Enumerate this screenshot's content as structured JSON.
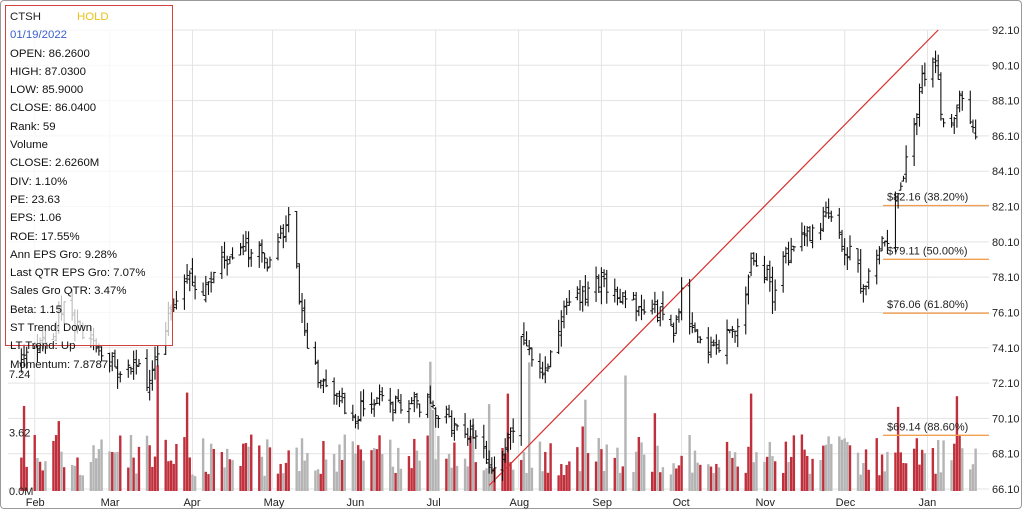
{
  "info": {
    "symbol": "CTSH",
    "rating": "HOLD",
    "date": "01/19/2022",
    "rows": [
      "OPEN: 86.2600",
      "HIGH: 87.0300",
      "LOW: 85.9000",
      "CLOSE: 86.0400",
      "Rank: 59",
      "Volume",
      "CLOSE: 2.6260M",
      "DIV: 1.10%",
      "PE: 23.63",
      "EPS: 1.06",
      "ROE: 17.55%",
      "Ann EPS Gro: 9.28%",
      "Last QTR EPS Gro: 7.07%",
      "Sales Gro QTR: 3.47%",
      "Beta: 1.15",
      "ST Trend: Down",
      "LT Trend: Up",
      "Momentum: 7.8787"
    ]
  },
  "colors": {
    "candle": "#111111",
    "volume_up": "#c0303c",
    "volume_down": "#b4b4b4",
    "trendline": "#d93030",
    "fib_line": "#f2a050",
    "grid": "#e3e3e3",
    "panel_border": "#d24040",
    "rating": "#e8c21a",
    "date": "#3a5fcc"
  },
  "chart_data": {
    "type": "candlestick",
    "price_axis": {
      "ticks": [
        "92.10",
        "90.10",
        "88.10",
        "86.10",
        "84.10",
        "82.10",
        "80.10",
        "78.10",
        "76.10",
        "74.10",
        "72.10",
        "70.10",
        "68.10",
        "66.10"
      ],
      "ylim": [
        66.1,
        92.1
      ],
      "side": "right"
    },
    "volume_axis": {
      "ticks": [
        "7.24",
        "3.62",
        "0.0M"
      ],
      "values": [
        7.24,
        3.62,
        0
      ],
      "side": "left"
    },
    "months": [
      "Feb",
      "Mar",
      "Apr",
      "May",
      "Jun",
      "Jul",
      "Aug",
      "Sep",
      "Oct",
      "Nov",
      "Dec",
      "Jan"
    ],
    "fibonacci": [
      {
        "label": "$82.16 (38.20%)",
        "value": 82.16
      },
      {
        "label": "$79.11 (50.00%)",
        "value": 79.11
      },
      {
        "label": "$76.06 (61.80%)",
        "value": 76.06
      },
      {
        "label": "$69.14 (88.60%)",
        "value": 69.14
      }
    ],
    "trendline": {
      "from_date": "2021-07-21",
      "from_price": 66.3,
      "to_date": "2022-01-05",
      "to_price": 92.1
    },
    "price_anchors": [
      [
        "2021-01-27",
        73.0
      ],
      [
        "2021-02-05",
        74.5
      ],
      [
        "2021-02-12",
        76.3
      ],
      [
        "2021-02-18",
        75.0
      ],
      [
        "2021-02-25",
        74.3
      ],
      [
        "2021-03-04",
        72.8
      ],
      [
        "2021-03-10",
        73.3
      ],
      [
        "2021-03-16",
        72.2
      ],
      [
        "2021-03-22",
        75.2
      ],
      [
        "2021-03-30",
        78.3
      ],
      [
        "2021-04-05",
        77.2
      ],
      [
        "2021-04-12",
        78.8
      ],
      [
        "2021-04-20",
        79.6
      ],
      [
        "2021-04-26",
        79.8
      ],
      [
        "2021-04-29",
        78.3
      ],
      [
        "2021-05-04",
        80.3
      ],
      [
        "2021-05-07",
        81.8
      ],
      [
        "2021-05-12",
        75.9
      ],
      [
        "2021-05-14",
        74.1
      ],
      [
        "2021-05-19",
        72.3
      ],
      [
        "2021-05-25",
        71.3
      ],
      [
        "2021-06-01",
        70.3
      ],
      [
        "2021-06-07",
        71.2
      ],
      [
        "2021-06-15",
        71.0
      ],
      [
        "2021-06-22",
        70.9
      ],
      [
        "2021-06-28",
        71.0
      ],
      [
        "2021-07-02",
        70.6
      ],
      [
        "2021-07-08",
        69.6
      ],
      [
        "2021-07-13",
        69.3
      ],
      [
        "2021-07-19",
        68.4
      ],
      [
        "2021-07-21",
        67.3
      ],
      [
        "2021-07-27",
        68.6
      ],
      [
        "2021-07-30",
        69.6
      ],
      [
        "2021-08-02",
        74.4
      ],
      [
        "2021-08-05",
        74.1
      ],
      [
        "2021-08-10",
        72.6
      ],
      [
        "2021-08-16",
        75.2
      ],
      [
        "2021-08-20",
        76.7
      ],
      [
        "2021-08-25",
        77.1
      ],
      [
        "2021-08-31",
        77.9
      ],
      [
        "2021-09-07",
        77.3
      ],
      [
        "2021-09-14",
        76.7
      ],
      [
        "2021-09-20",
        76.4
      ],
      [
        "2021-09-24",
        75.8
      ],
      [
        "2021-09-28",
        75.1
      ],
      [
        "2021-10-01",
        77.3
      ],
      [
        "2021-10-05",
        75.2
      ],
      [
        "2021-10-11",
        73.8
      ],
      [
        "2021-10-18",
        74.6
      ],
      [
        "2021-10-22",
        75.4
      ],
      [
        "2021-10-27",
        78.8
      ],
      [
        "2021-11-01",
        78.6
      ],
      [
        "2021-11-04",
        77.2
      ],
      [
        "2021-11-09",
        79.3
      ],
      [
        "2021-11-15",
        80.2
      ],
      [
        "2021-11-22",
        81.3
      ],
      [
        "2021-11-26",
        81.8
      ],
      [
        "2021-12-01",
        79.8
      ],
      [
        "2021-12-06",
        78.6
      ],
      [
        "2021-12-08",
        77.2
      ],
      [
        "2021-12-13",
        79.6
      ],
      [
        "2021-12-17",
        80.3
      ],
      [
        "2021-12-21",
        83.1
      ],
      [
        "2021-12-27",
        86.3
      ],
      [
        "2021-12-30",
        89.6
      ],
      [
        "2022-01-04",
        90.4
      ],
      [
        "2022-01-06",
        87.6
      ],
      [
        "2022-01-10",
        86.6
      ],
      [
        "2022-01-13",
        88.1
      ],
      [
        "2022-01-19",
        86.0
      ]
    ],
    "current": {
      "date": "2022-01-19",
      "open": 86.26,
      "high": 87.03,
      "low": 85.9,
      "close": 86.04,
      "volume_m": 2.626
    }
  }
}
